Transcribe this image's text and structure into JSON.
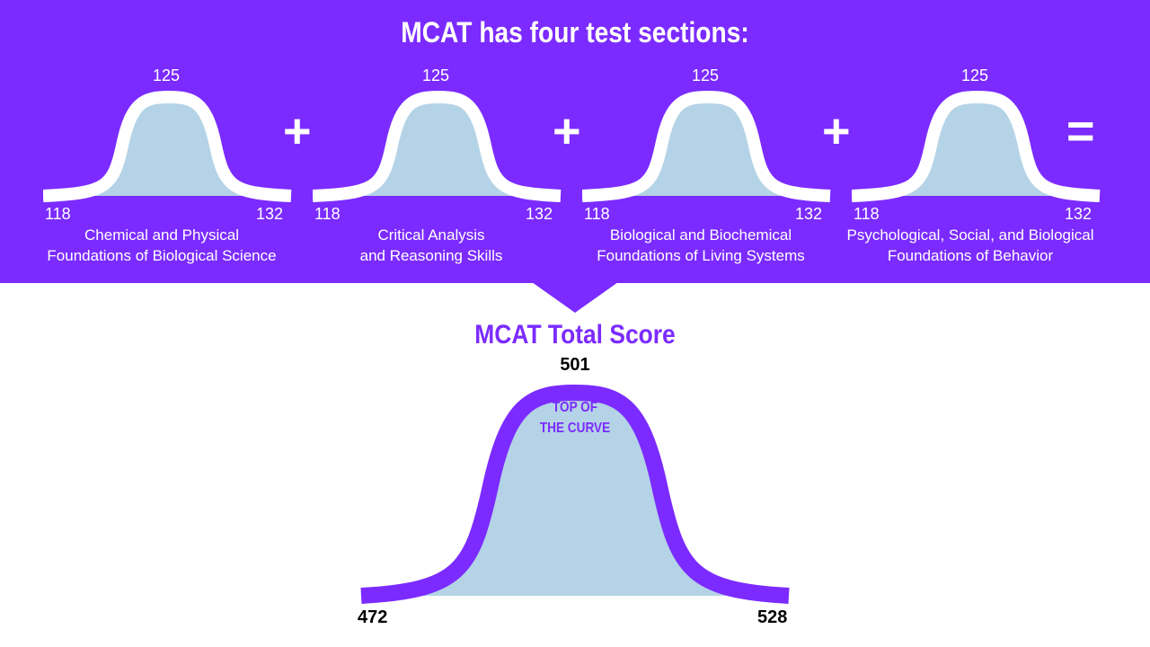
{
  "header": {
    "title": "MCAT has four test sections:"
  },
  "sections": [
    {
      "mean": "125",
      "min": "118",
      "max": "132",
      "name_line1": "Chemical and Physical",
      "name_line2": "Foundations of Biological Science"
    },
    {
      "mean": "125",
      "min": "118",
      "max": "132",
      "name_line1": "Critical Analysis",
      "name_line2": "and Reasoning Skills"
    },
    {
      "mean": "125",
      "min": "118",
      "max": "132",
      "name_line1": "Biological and Biochemical",
      "name_line2": "Foundations of Living Systems"
    },
    {
      "mean": "125",
      "min": "118",
      "max": "132",
      "name_line1": "Psychological, Social, and Biological",
      "name_line2": "Foundations of Behavior"
    }
  ],
  "operators": [
    "+",
    "+",
    "+",
    "="
  ],
  "total": {
    "title": "MCAT Total Score",
    "mean": "501",
    "min": "472",
    "max": "528",
    "label_line1": "TOP OF",
    "label_line2": "THE CURVE"
  },
  "colors": {
    "brand_purple": "#7b2bff",
    "curve_fill": "#b4d3e6",
    "curve_stroke_top": "#ffffff",
    "curve_stroke_total": "#7b2bff"
  }
}
